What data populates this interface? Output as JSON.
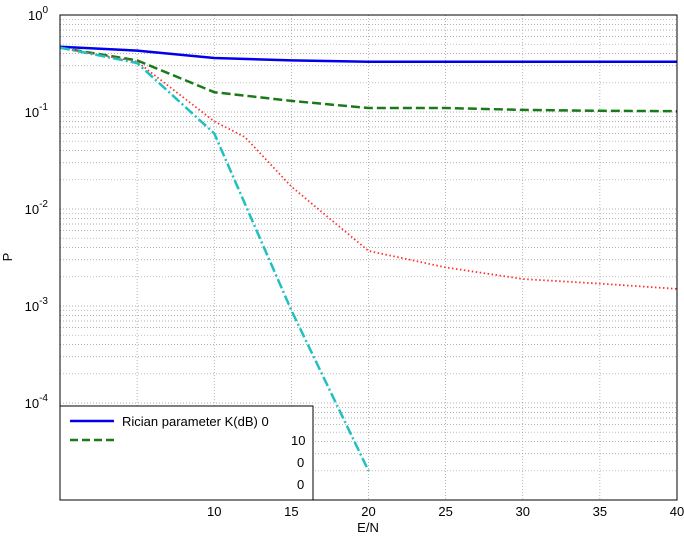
{
  "chart_data": {
    "type": "line",
    "xlabel": "E/N",
    "ylabel": "P",
    "xlim": [
      0,
      40
    ],
    "ylim": [
      1e-05,
      1
    ],
    "yscale": "log",
    "grid": true,
    "x_ticks": [
      10,
      15,
      20,
      25,
      30,
      35,
      40
    ],
    "y_ticks": [
      {
        "base": "10",
        "exp": "0"
      },
      {
        "base": "10",
        "exp": "-1"
      },
      {
        "base": "10",
        "exp": "-2"
      },
      {
        "base": "10",
        "exp": "-3"
      },
      {
        "base": "10",
        "exp": "-4"
      }
    ],
    "legend_placement": "bottom-left",
    "legend_visible_text": [
      "Rician parameter K(dB) 0",
      "10",
      "0",
      "0"
    ],
    "series": [
      {
        "color": "#0000ee",
        "style": "solid",
        "x": [
          0,
          5,
          10,
          15,
          20,
          25,
          30,
          35,
          40
        ],
        "y": [
          0.47,
          0.43,
          0.36,
          0.34,
          0.33,
          0.33,
          0.33,
          0.33,
          0.33
        ]
      },
      {
        "color": "#1a7a1a",
        "style": "dashed",
        "x": [
          0,
          5,
          10,
          15,
          20,
          25,
          30,
          35,
          40
        ],
        "y": [
          0.46,
          0.34,
          0.16,
          0.13,
          0.11,
          0.11,
          0.105,
          0.103,
          0.102
        ]
      },
      {
        "color": "#ff3030",
        "style": "dotted",
        "x": [
          0,
          5,
          10,
          12,
          15,
          20,
          25,
          30,
          35,
          40
        ],
        "y": [
          0.46,
          0.33,
          0.08,
          0.055,
          0.017,
          0.0037,
          0.0025,
          0.0019,
          0.0017,
          0.0015
        ]
      },
      {
        "color": "#20c0c0",
        "style": "dash-dot",
        "x": [
          0,
          5,
          10,
          15,
          20
        ],
        "y": [
          0.46,
          0.32,
          0.06,
          0.0009,
          2e-05
        ]
      }
    ]
  }
}
